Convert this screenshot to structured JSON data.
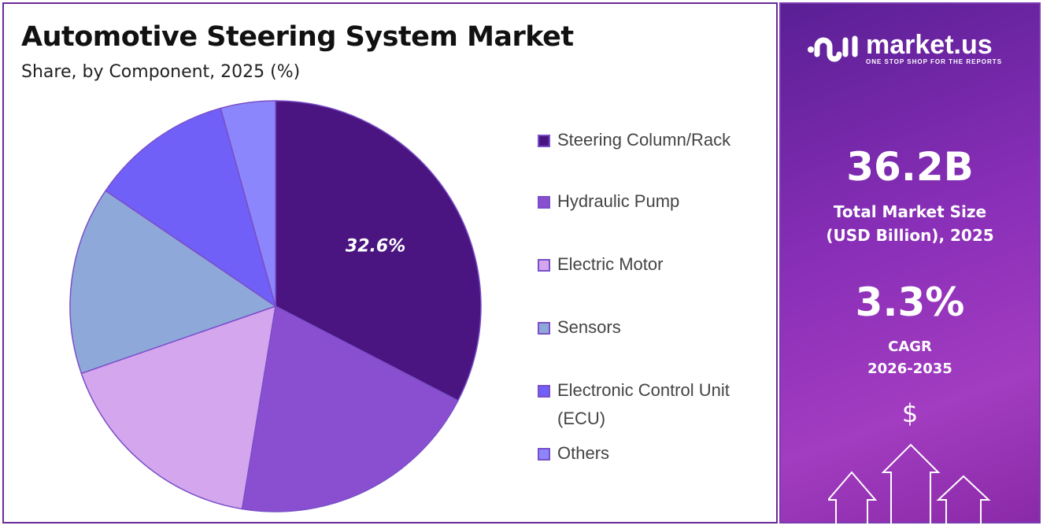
{
  "chart_data": {
    "type": "pie",
    "title": "Automotive Steering System Market",
    "subtitle": "Share, by Component, 2025 (%)",
    "categories": [
      "Steering Column/Rack",
      "Hydraulic Pump",
      "Electric Motor",
      "Sensors",
      "Electronic Control Unit (ECU)",
      "Others"
    ],
    "values": [
      32.6,
      20.0,
      17.1,
      14.8,
      11.2,
      4.3
    ],
    "data_labels": [
      "32.6%",
      "",
      "",
      "",
      "",
      ""
    ],
    "colors": [
      "#4a1580",
      "#8a4fd0",
      "#d4a6ee",
      "#8fa8da",
      "#7060f8",
      "#8c86fc"
    ],
    "start_angle": "12 o'clock",
    "direction": "clockwise",
    "legend_placement": "right"
  },
  "sidebar": {
    "brand": "market.us",
    "tagline": "ONE STOP SHOP FOR THE REPORTS",
    "market_size": "36.2B",
    "market_size_label_1": "Total Market Size",
    "market_size_label_2": "(USD Billion), 2025",
    "cagr": "3.3%",
    "cagr_label_1": "CAGR",
    "cagr_label_2": "2026-2035",
    "dollar_icon": "$"
  }
}
